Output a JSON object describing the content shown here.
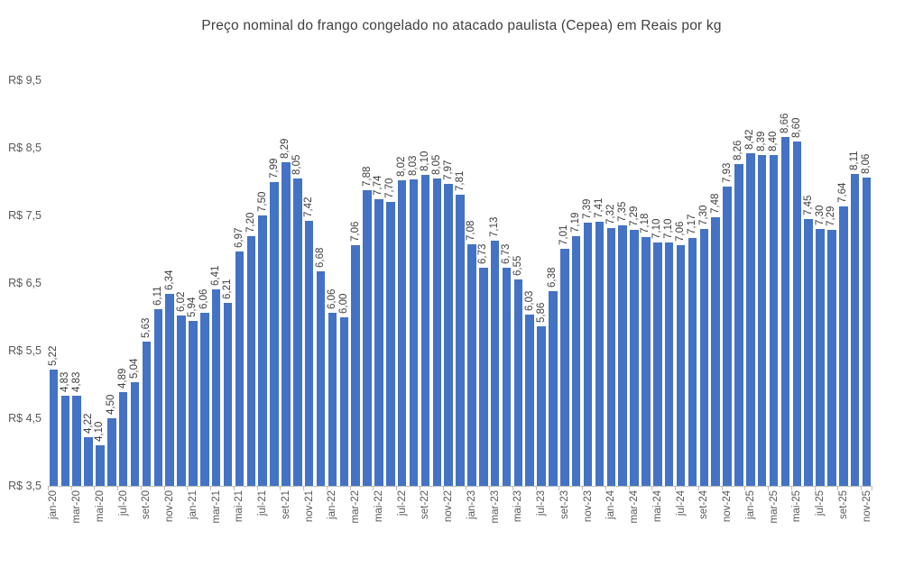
{
  "chart_data": {
    "type": "bar",
    "title": "Preço nominal do frango congelado no atacado paulista (Cepea) em Reais por kg",
    "xlabel": "",
    "ylabel": "",
    "ylim": [
      3.5,
      9.5
    ],
    "gridlines": false,
    "legend": "none",
    "y_tick_labels": [
      "R$ 9,5",
      "R$ 8,5",
      "R$ 7,5",
      "R$ 6,5",
      "R$ 5,5",
      "R$ 4,5",
      "R$ 3,5"
    ],
    "y_tick_values": [
      9.5,
      8.5,
      7.5,
      6.5,
      5.5,
      4.5,
      3.5
    ],
    "x_tick_labels_shown": [
      "jan-20",
      "mar-20",
      "mai-20",
      "jul-20",
      "set-20",
      "nov-20",
      "jan-21",
      "mar-21",
      "mai-21",
      "jul-21",
      "set-21",
      "nov-21",
      "jan-22",
      "mar-22",
      "mai-22",
      "jul-22",
      "set-22",
      "nov-22",
      "jan-23",
      "mar-23",
      "mai-23",
      "jul-23",
      "set-23",
      "nov-23",
      "jan-24",
      "mar-24",
      "mai-24",
      "jul-24",
      "set-24",
      "nov-24",
      "jan-25",
      "mar-25",
      "mai-25",
      "jul-25",
      "set-25",
      "nov-25"
    ],
    "x_label_interval": 2,
    "categories": [
      "jan-20",
      "fev-20",
      "mar-20",
      "abr-20",
      "mai-20",
      "jun-20",
      "jul-20",
      "ago-20",
      "set-20",
      "out-20",
      "nov-20",
      "dez-20",
      "jan-21",
      "fev-21",
      "mar-21",
      "abr-21",
      "mai-21",
      "jun-21",
      "jul-21",
      "ago-21",
      "set-21",
      "out-21",
      "nov-21",
      "dez-21",
      "jan-22",
      "fev-22",
      "mar-22",
      "abr-22",
      "mai-22",
      "jun-22",
      "jul-22",
      "ago-22",
      "set-22",
      "out-22",
      "nov-22",
      "dez-22",
      "jan-23",
      "fev-23",
      "mar-23",
      "abr-23",
      "mai-23",
      "jun-23",
      "jul-23",
      "ago-23",
      "set-23",
      "out-23",
      "nov-23",
      "dez-23",
      "jan-24",
      "fev-24",
      "mar-24",
      "abr-24",
      "mai-24",
      "jun-24",
      "jul-24",
      "ago-24",
      "set-24",
      "out-24",
      "nov-24",
      "dez-24",
      "jan-25",
      "fev-25",
      "mar-25",
      "abr-25",
      "mai-25",
      "jun-25",
      "jul-25",
      "ago-25",
      "set-25",
      "out-25",
      "nov-25"
    ],
    "values": [
      5.22,
      4.83,
      4.83,
      4.22,
      4.1,
      4.5,
      4.89,
      5.04,
      5.63,
      6.11,
      6.34,
      6.02,
      5.94,
      6.06,
      6.41,
      6.21,
      6.97,
      7.2,
      7.5,
      7.99,
      8.29,
      8.05,
      7.42,
      6.68,
      6.06,
      6.0,
      7.06,
      7.88,
      7.74,
      7.7,
      8.02,
      8.03,
      8.1,
      8.05,
      7.97,
      7.81,
      7.08,
      6.73,
      7.13,
      6.73,
      6.55,
      6.03,
      5.86,
      6.38,
      7.01,
      7.19,
      7.39,
      7.41,
      7.32,
      7.35,
      7.29,
      7.18,
      7.1,
      7.1,
      7.06,
      7.17,
      7.3,
      7.48,
      7.93,
      8.26,
      8.42,
      8.39,
      8.4,
      8.66,
      8.6,
      7.45,
      7.3,
      7.29,
      7.64,
      8.11,
      8.06
    ],
    "bar_labels": [
      "5,22",
      "4,83",
      "4,83",
      "4,22",
      "4,10",
      "4,50",
      "4,89",
      "5,04",
      "5,63",
      "6,11",
      "6,34",
      "6,02",
      "5,94",
      "6,06",
      "6,41",
      "6,21",
      "6,97",
      "7,20",
      "7,50",
      "7,99",
      "8,29",
      "8,05",
      "7,42",
      "6,68",
      "6,06",
      "6,00",
      "7,06",
      "7,88",
      "7,74",
      "7,70",
      "8,02",
      "8,03",
      "8,10",
      "8,05",
      "7,97",
      "7,81",
      "7,08",
      "6,73",
      "7,13",
      "6,73",
      "6,55",
      "6,03",
      "5,86",
      "6,38",
      "7,01",
      "7,19",
      "7,39",
      "7,41",
      "7,32",
      "7,35",
      "7,29",
      "7,18",
      "7,10",
      "7,10",
      "7,06",
      "7,17",
      "7,30",
      "7,48",
      "7,93",
      "8,26",
      "8,42",
      "8,39",
      "8,40",
      "8,66",
      "8,60",
      "7,45",
      "7,30",
      "7,29",
      "7,64",
      "8,11",
      "8,06"
    ],
    "colors": {
      "bar": "#4472C4",
      "data_label": "#404040",
      "axis_label": "#595959",
      "title": "#404040",
      "axis_line": "#BFBFBF",
      "background": "#FFFFFF"
    }
  }
}
